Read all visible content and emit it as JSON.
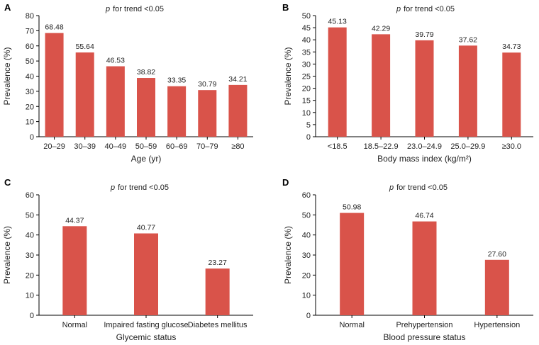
{
  "colors": {
    "bar": "#d9534a",
    "axis": "#000000",
    "text": "#222222"
  },
  "chart_data": [
    {
      "type": "bar",
      "panel": "A",
      "trend_p": "p",
      "trend_rest": "for trend <0.05",
      "xlabel": "Age (yr)",
      "ylabel": "Prevalence (%)",
      "ylim": [
        0,
        80
      ],
      "yticks": [
        0,
        10,
        20,
        30,
        40,
        50,
        60,
        70,
        80
      ],
      "categories": [
        "20–29",
        "30–39",
        "40–49",
        "50–59",
        "60–69",
        "70–79",
        "≥80"
      ],
      "values": [
        68.48,
        55.64,
        46.53,
        38.82,
        33.35,
        30.79,
        34.21
      ],
      "labels": [
        "68.48",
        "55.64",
        "46.53",
        "38.82",
        "33.35",
        "30.79",
        "34.21"
      ]
    },
    {
      "type": "bar",
      "panel": "B",
      "trend_p": "p",
      "trend_rest": "for trend <0.05",
      "xlabel": "Body mass index (kg/m²)",
      "ylabel": "Prevalence (%)",
      "ylim": [
        0,
        50
      ],
      "yticks": [
        0,
        5,
        10,
        15,
        20,
        25,
        30,
        35,
        40,
        45,
        50
      ],
      "categories": [
        "<18.5",
        "18.5–22.9",
        "23.0–24.9",
        "25.0–29.9",
        "≥30.0"
      ],
      "values": [
        45.13,
        42.29,
        39.79,
        37.62,
        34.73
      ],
      "labels": [
        "45.13",
        "42.29",
        "39.79",
        "37.62",
        "34.73"
      ]
    },
    {
      "type": "bar",
      "panel": "C",
      "trend_p": "p",
      "trend_rest": "for trend <0.05",
      "xlabel": "Glycemic status",
      "ylabel": "Prevalence (%)",
      "ylim": [
        0,
        60
      ],
      "yticks": [
        0,
        10,
        20,
        30,
        40,
        50,
        60
      ],
      "categories": [
        "Normal",
        "Impaired fasting glucose",
        "Diabetes mellitus"
      ],
      "values": [
        44.37,
        40.77,
        23.27
      ],
      "labels": [
        "44.37",
        "40.77",
        "23.27"
      ]
    },
    {
      "type": "bar",
      "panel": "D",
      "trend_p": "p",
      "trend_rest": "for trend <0.05",
      "xlabel": "Blood pressure status",
      "ylabel": "Prevalence (%)",
      "ylim": [
        0,
        60
      ],
      "yticks": [
        0,
        10,
        20,
        30,
        40,
        50,
        60
      ],
      "categories": [
        "Normal",
        "Prehypertension",
        "Hypertension"
      ],
      "values": [
        50.98,
        46.74,
        27.6
      ],
      "labels": [
        "50.98",
        "46.74",
        "27.60"
      ]
    }
  ]
}
